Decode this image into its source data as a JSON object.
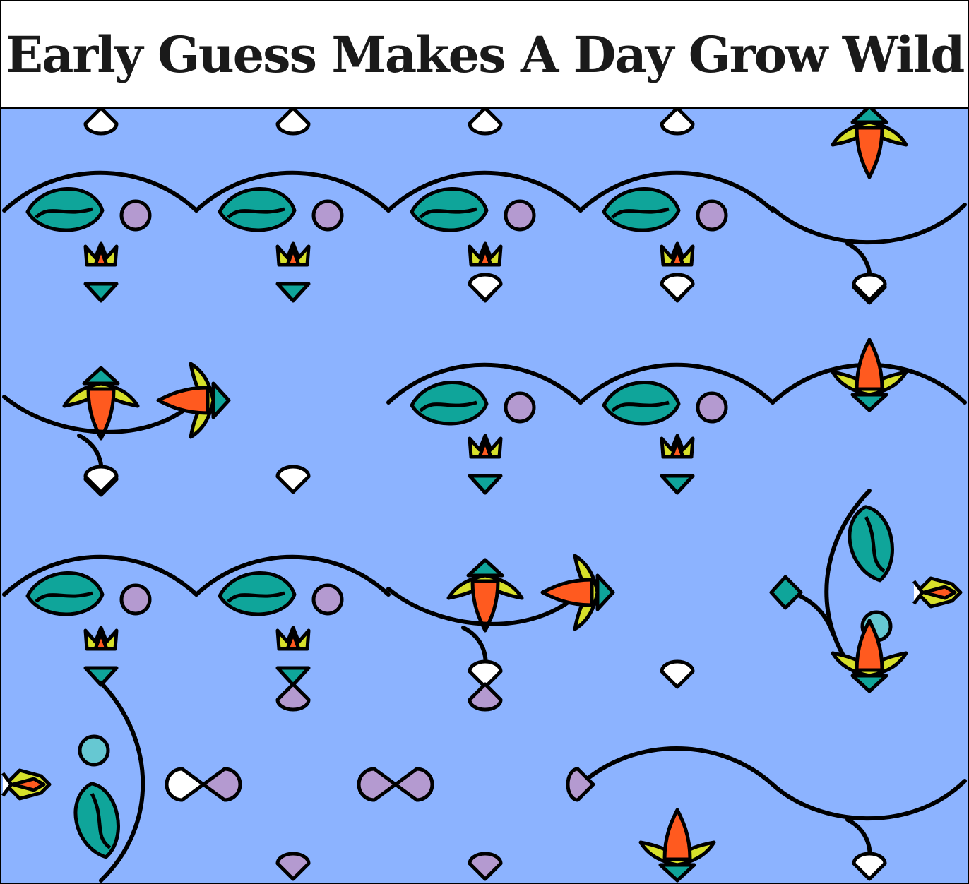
{
  "title": "Early Guess Makes A Day Grow Wild",
  "palette": {
    "background": "#8cb3ff",
    "teal": "#0fa59a",
    "lilac": "#b49ad0",
    "orange": "#ff5a1f",
    "yellow": "#d7e02a",
    "cyan": "#66c8d2",
    "white": "#ffffff",
    "outline": "#000000"
  },
  "tiles": {
    "rows": [
      [
        "scallop-top",
        "scallop-top",
        "scallop-top",
        "scallop-top",
        "sprout-curve"
      ],
      [
        "blossom-curve",
        "bud-plain",
        "scallop-mid",
        "scallop-mid",
        "scallop-right"
      ],
      [
        "scallop-top",
        "scallop-top",
        "sprout-curve",
        "bud-ghost",
        "vine-vertical"
      ],
      [
        "vine-left",
        "bow-white",
        "bow-lilac",
        "sprout-rise",
        "sprout-curve"
      ]
    ]
  }
}
